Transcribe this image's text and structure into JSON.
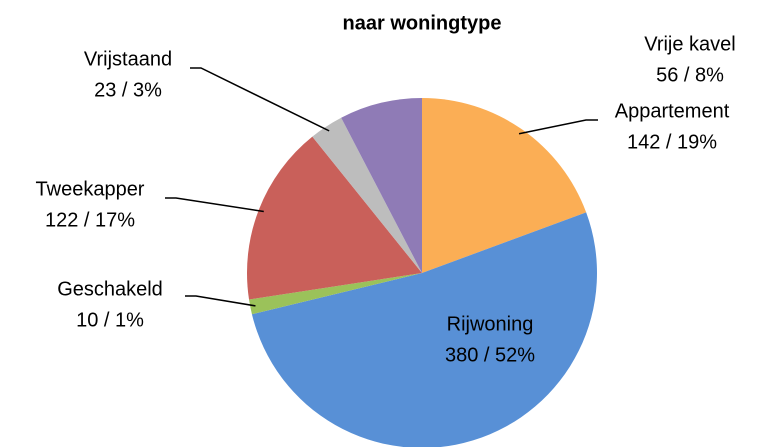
{
  "chart_data": {
    "type": "pie",
    "title": "naar woningtype",
    "categories": [
      "Appartement",
      "Rijwoning",
      "Geschakeld",
      "Tweekapper",
      "Vrijstaand",
      "Vrije kavel"
    ],
    "values": [
      142,
      380,
      10,
      122,
      23,
      56
    ],
    "value_labels": [
      "142 / 19%",
      "380 / 52%",
      "10 / 1%",
      "122 / 17%",
      "23 / 3%",
      "56 / 8%"
    ],
    "colors": [
      "#fbae55",
      "#5890d6",
      "#9bc25a",
      "#c9605a",
      "#bdbdbd",
      "#8f7bb6"
    ]
  }
}
